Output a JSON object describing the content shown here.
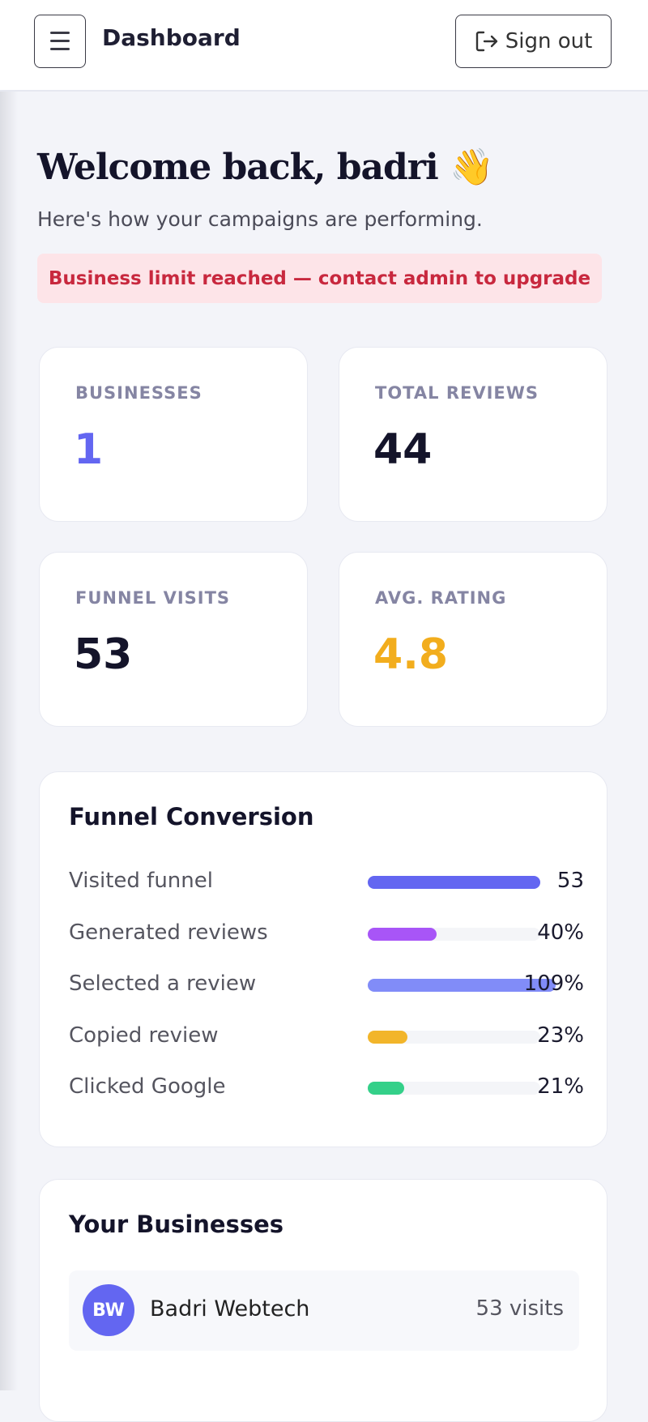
{
  "header": {
    "title": "Dashboard",
    "sign_out": "Sign out"
  },
  "welcome": {
    "title": "Welcome back, badri 👋",
    "subtitle": "Here's how your campaigns are performing."
  },
  "alert": "Business limit reached — contact admin to upgrade",
  "stats": [
    {
      "label": "Businesses",
      "value": 1,
      "color": "#6366f1"
    },
    {
      "label": "Total Reviews",
      "value": 44,
      "color": "#14142a"
    },
    {
      "label": "Funnel Visits",
      "value": 53,
      "color": "#14142a"
    },
    {
      "label": "Avg. Rating",
      "value": 4.8,
      "color": "#f2ad1d"
    }
  ],
  "funnel": {
    "title": "Funnel Conversion",
    "rows": [
      {
        "label": "Visited funnel",
        "value_label": "53",
        "percent": 100,
        "color": "#6366f1"
      },
      {
        "label": "Generated reviews",
        "value_label": "40%",
        "percent": 40,
        "color": "#a855f7"
      },
      {
        "label": "Selected a review",
        "value_label": "109%",
        "percent": 109,
        "color": "#818cf8"
      },
      {
        "label": "Copied review",
        "value_label": "23%",
        "percent": 23,
        "color": "#f2b52a"
      },
      {
        "label": "Clicked Google",
        "value_label": "21%",
        "percent": 21,
        "color": "#34d089"
      }
    ]
  },
  "businesses": {
    "title": "Your Businesses",
    "items": [
      {
        "initials": "BW",
        "name": "Badri Webtech",
        "visits": "53 visits"
      }
    ]
  }
}
